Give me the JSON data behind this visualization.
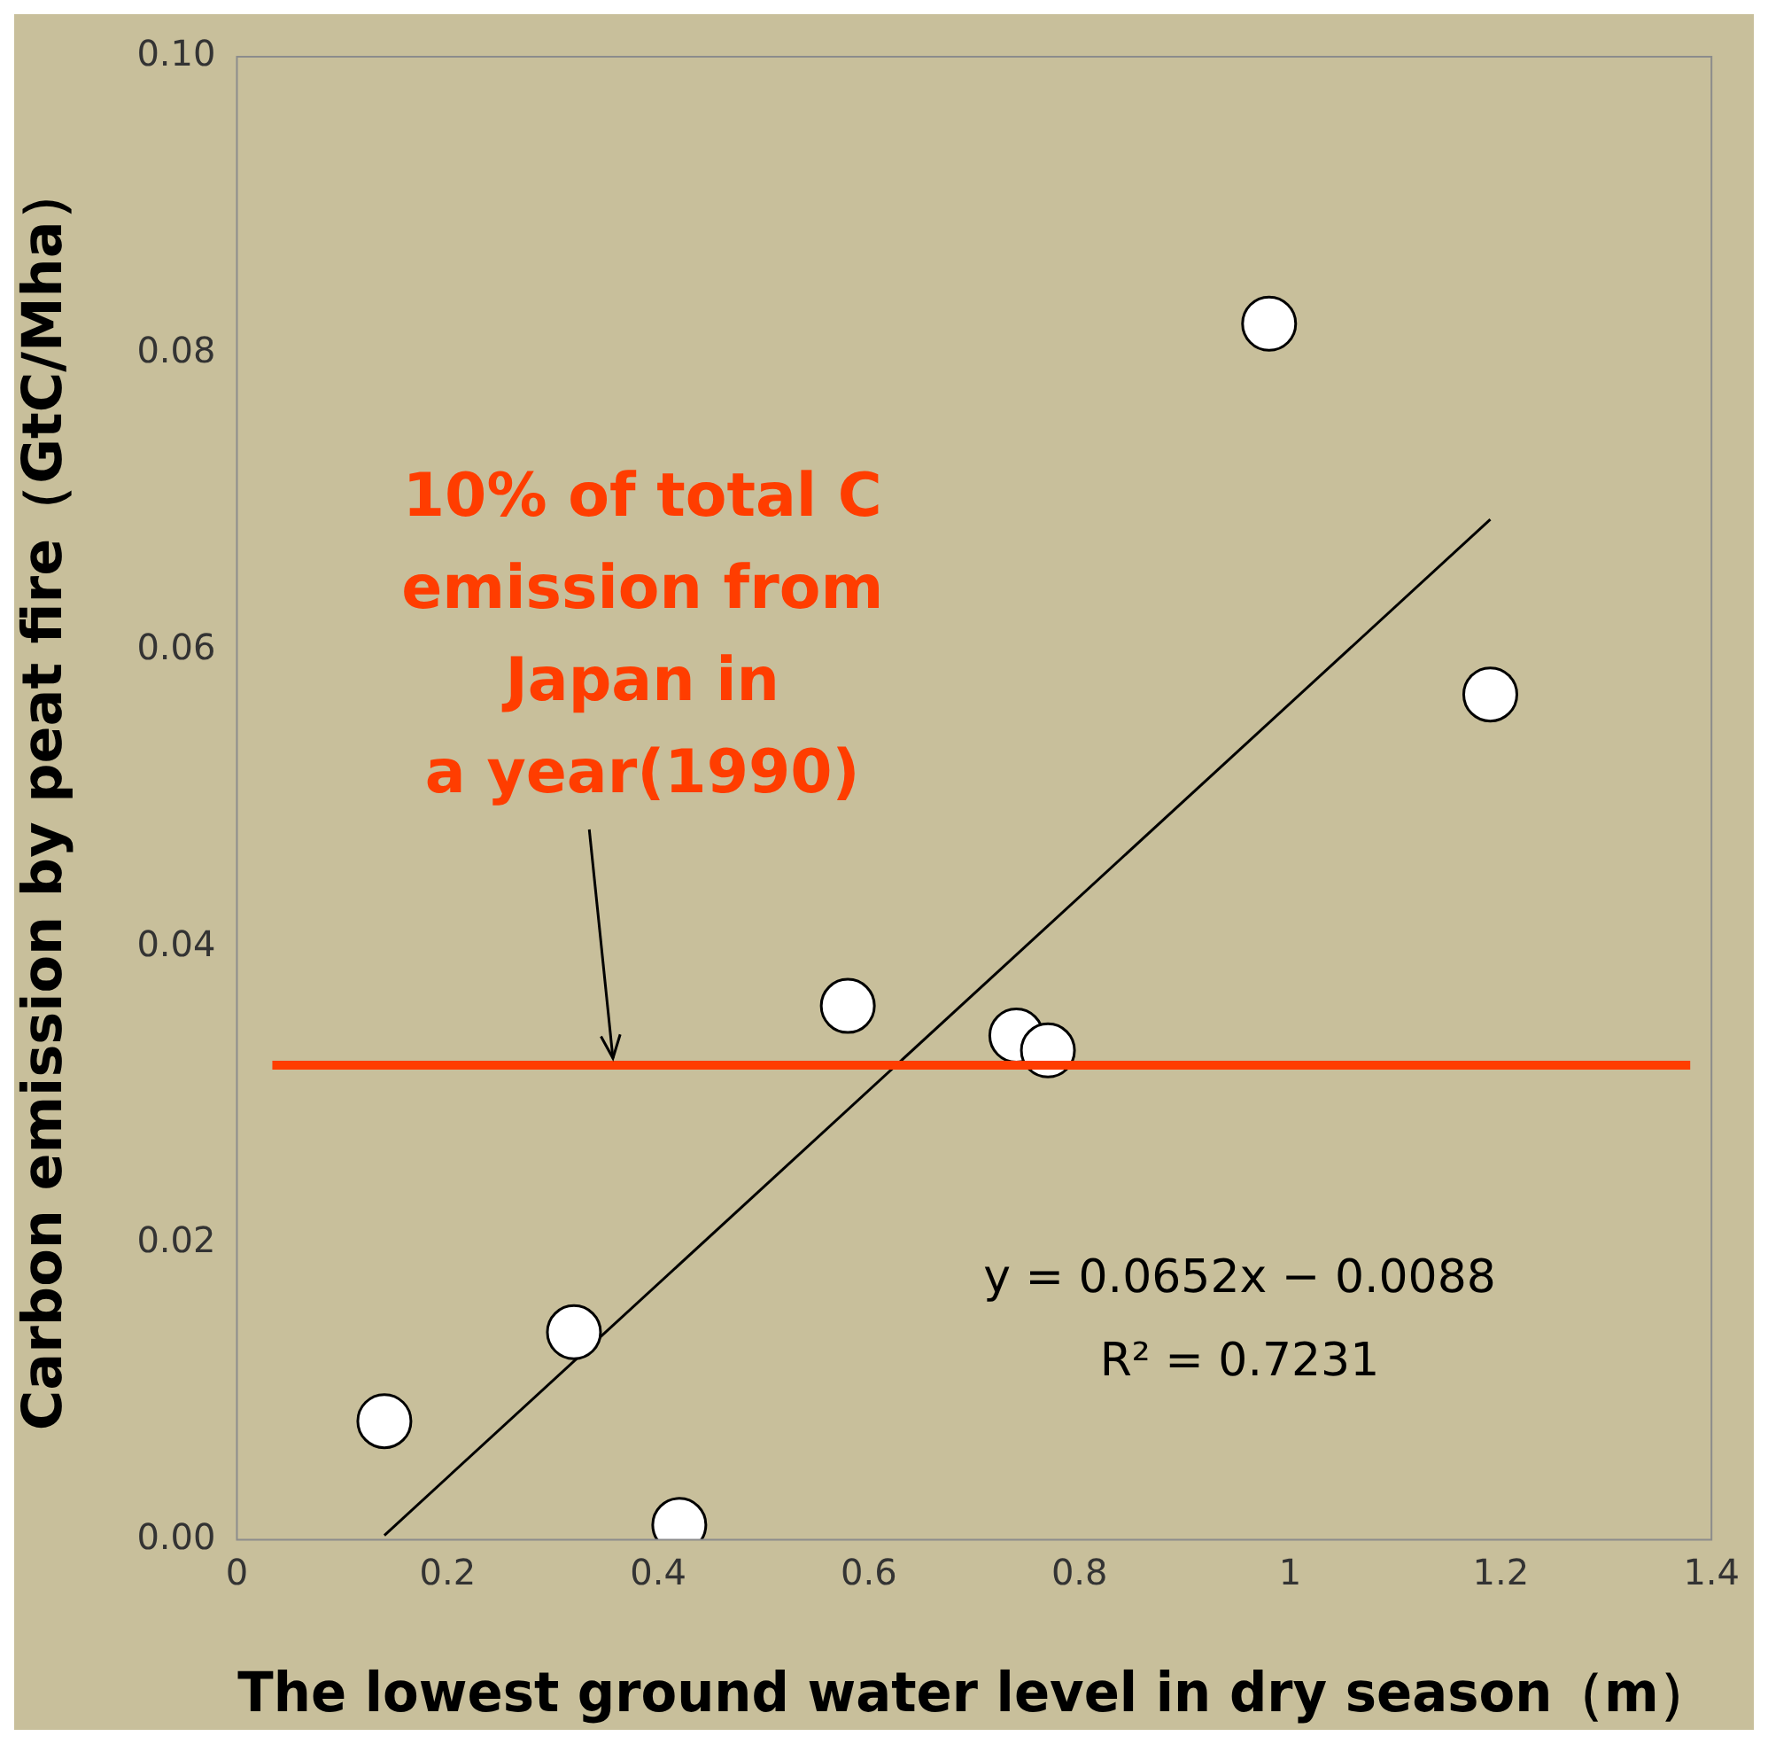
{
  "chart_data": {
    "type": "scatter",
    "xlabel": "The lowest ground water level in dry season（m）",
    "ylabel": "Carbon emission by peat fire（GtC/Mha）",
    "xlim": [
      0,
      1.4
    ],
    "xticks": [
      0,
      0.2,
      0.4,
      0.6,
      0.8,
      1,
      1.2,
      1.4
    ],
    "ylim": [
      0,
      0.1
    ],
    "yticks": [
      {
        "value": 0,
        "label": "0.00"
      },
      {
        "value": 0.02,
        "label": "0.02"
      },
      {
        "value": 0.04,
        "label": "0.04"
      },
      {
        "value": 0.06,
        "label": "0.06"
      },
      {
        "value": 0.08,
        "label": "0.08"
      },
      {
        "value": 0.1,
        "label": "0.10"
      }
    ],
    "grid": false,
    "legend": false,
    "series": [
      {
        "type": "scatter",
        "marker": "circle",
        "color": "#ffffff",
        "x": [
          0.14,
          0.32,
          0.42,
          0.58,
          0.74,
          0.77,
          0.98,
          1.19
        ],
        "values": [
          0.008,
          0.014,
          0.001,
          0.036,
          0.034,
          0.033,
          0.082,
          0.057
        ]
      },
      {
        "type": "line",
        "marker": "none",
        "line_style": "solid",
        "color": "#000000",
        "x": [
          0.14,
          1.19
        ],
        "values": [
          0.0003,
          0.0688
        ]
      }
    ],
    "ref_lines": [
      {
        "axis": "y",
        "value": 0.032,
        "color": "#ff3d00",
        "label": "10% of total C\nemission from\nJapan in\na year(1990)"
      }
    ],
    "annotations": [
      "y = 0.0652x − 0.0088",
      "R² = 0.7231"
    ]
  }
}
